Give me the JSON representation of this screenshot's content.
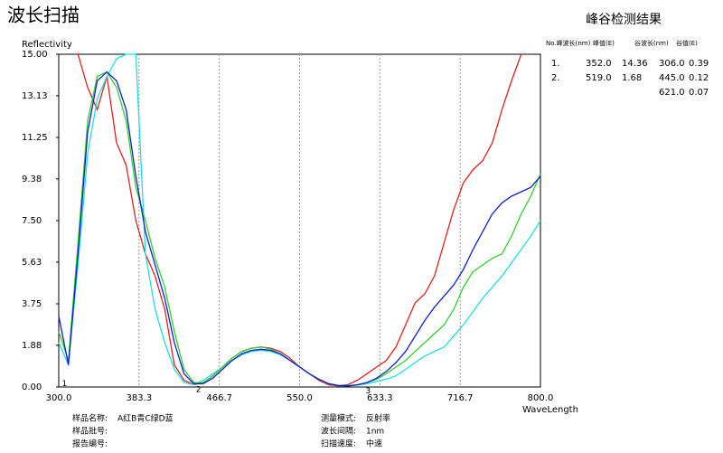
{
  "chart_data": {
    "type": "line",
    "title": "波长扫描",
    "y_label": "Reflectivity",
    "x_label": "WaveLength",
    "grid": "x",
    "x": [
      300,
      310,
      320,
      330,
      340,
      350,
      360,
      370,
      380,
      390,
      400,
      410,
      420,
      430,
      440,
      450,
      460,
      470,
      480,
      490,
      500,
      510,
      520,
      530,
      540,
      550,
      560,
      570,
      580,
      590,
      600,
      610,
      620,
      630,
      640,
      650,
      660,
      670,
      680,
      690,
      700,
      710,
      720,
      730,
      740,
      750,
      760,
      770,
      780,
      790,
      800
    ],
    "xlim": [
      300,
      800
    ],
    "ylim": [
      0,
      15
    ],
    "xticks": [
      {
        "value": 300,
        "label": "300.0"
      },
      {
        "value": 383.3,
        "label": "383.3"
      },
      {
        "value": 466.7,
        "label": "466.7"
      },
      {
        "value": 550,
        "label": "550.0"
      },
      {
        "value": 633.3,
        "label": "633.3"
      },
      {
        "value": 716.7,
        "label": "716.7"
      },
      {
        "value": 800,
        "label": "800.0"
      }
    ],
    "yticks": [
      {
        "value": 0,
        "label": "0.00"
      },
      {
        "value": 1.88,
        "label": "1.88"
      },
      {
        "value": 3.75,
        "label": "3.75"
      },
      {
        "value": 5.63,
        "label": "5.63"
      },
      {
        "value": 7.5,
        "label": "7.50"
      },
      {
        "value": 9.38,
        "label": "9.38"
      },
      {
        "value": 11.25,
        "label": "11.25"
      },
      {
        "value": 13.13,
        "label": "13.13"
      },
      {
        "value": 15,
        "label": "15.00"
      }
    ],
    "series": [
      {
        "name": "A",
        "color": "#e02020",
        "values": [
          null,
          null,
          15,
          13.5,
          12.5,
          14,
          11,
          10,
          7.5,
          6,
          5,
          3.5,
          1,
          0.3,
          0.1,
          0.2,
          0.5,
          0.9,
          1.3,
          1.6,
          1.75,
          1.8,
          1.75,
          1.6,
          1.3,
          0.9,
          0.6,
          0.3,
          0.1,
          0.05,
          0.1,
          0.3,
          0.6,
          0.9,
          1.2,
          1.8,
          2.8,
          3.8,
          4.2,
          5,
          6.5,
          8,
          9.2,
          9.8,
          10.2,
          11,
          12.5,
          13.8,
          15,
          null,
          null
        ]
      },
      {
        "name": "B",
        "color": "#20e0e0",
        "values": [
          2,
          1,
          5.5,
          10.5,
          13,
          14,
          14.8,
          15,
          15,
          6,
          3.5,
          2,
          0.8,
          0.2,
          0.1,
          0.3,
          0.6,
          0.9,
          1.2,
          1.45,
          1.6,
          1.65,
          1.6,
          1.45,
          1.2,
          0.9,
          0.6,
          0.35,
          0.15,
          0.07,
          0.05,
          0.08,
          0.15,
          0.25,
          0.35,
          0.5,
          0.8,
          1.1,
          1.4,
          1.6,
          1.8,
          2.3,
          2.8,
          3.4,
          4,
          4.5,
          5,
          5.6,
          6.2,
          6.8,
          7.5
        ]
      },
      {
        "name": "C",
        "color": "#30d030",
        "values": [
          2.5,
          1.2,
          6.5,
          12,
          14,
          14.2,
          13.5,
          12,
          9,
          7.5,
          5.8,
          4.5,
          2.5,
          0.8,
          0.2,
          0.2,
          0.5,
          0.9,
          1.3,
          1.6,
          1.75,
          1.8,
          1.7,
          1.5,
          1.2,
          0.9,
          0.6,
          0.35,
          0.15,
          0.06,
          0.05,
          0.1,
          0.2,
          0.35,
          0.6,
          0.9,
          1.2,
          1.6,
          2,
          2.4,
          2.8,
          3.5,
          4.5,
          5.2,
          5.5,
          5.8,
          6,
          6.8,
          7.8,
          8.6,
          9.6
        ]
      },
      {
        "name": "D",
        "color": "#1020d0",
        "values": [
          3.2,
          1,
          6,
          11.5,
          13.8,
          14.2,
          13.8,
          12.5,
          9.5,
          7,
          5.5,
          4,
          2,
          0.6,
          0.15,
          0.15,
          0.4,
          0.8,
          1.2,
          1.5,
          1.65,
          1.7,
          1.65,
          1.5,
          1.2,
          0.9,
          0.6,
          0.35,
          0.15,
          0.07,
          0.05,
          0.1,
          0.2,
          0.4,
          0.7,
          1.1,
          1.6,
          2.3,
          3,
          3.6,
          4.1,
          4.6,
          5.3,
          6.2,
          7,
          7.8,
          8.3,
          8.6,
          8.8,
          9,
          9.5
        ]
      }
    ],
    "annotations": [
      {
        "x": 306,
        "y": 0.39,
        "text": "1"
      },
      {
        "x": 445,
        "y": 0.12,
        "text": "2"
      },
      {
        "x": 621,
        "y": 0.07,
        "text": "3"
      }
    ]
  },
  "peak_table": {
    "title": "峰谷检测结果",
    "header": [
      "No.峰波长(nm)",
      "峰值(E)",
      "谷波长(nm)",
      "谷值(E)"
    ],
    "rows": [
      [
        "1.",
        "352.0",
        "14.36",
        "306.0",
        "0.39"
      ],
      [
        "2.",
        "519.0",
        "1.68",
        "445.0",
        "0.12"
      ],
      [
        null,
        null,
        null,
        "621.0",
        "0.07"
      ]
    ]
  },
  "info": [
    [
      "样品名称:",
      "A红B青C绿D蓝"
    ],
    [
      "样品批号:",
      null
    ],
    [
      "报告编号:",
      null
    ],
    [
      "测量模式:",
      "反射率"
    ],
    [
      "波长间隔:",
      "1nm"
    ],
    [
      "扫描速度:",
      "中速"
    ]
  ]
}
